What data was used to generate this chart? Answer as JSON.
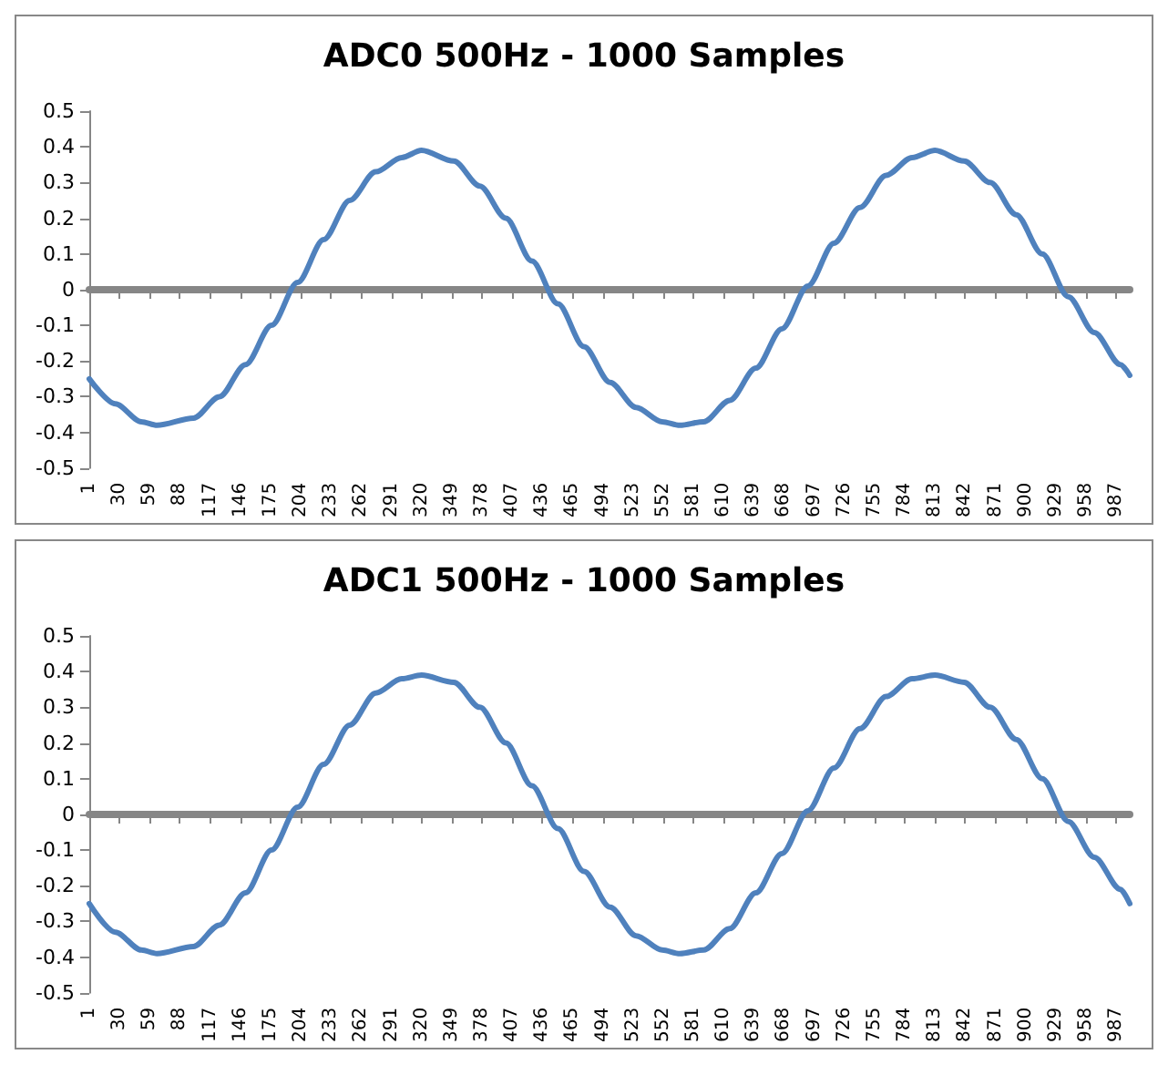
{
  "chart_data": [
    {
      "type": "line",
      "title": "ADC0 500Hz - 1000 Samples",
      "xlim": [
        1,
        1000
      ],
      "xticks": [
        1,
        30,
        59,
        88,
        117,
        146,
        175,
        204,
        233,
        262,
        291,
        320,
        349,
        378,
        407,
        436,
        465,
        494,
        523,
        552,
        581,
        610,
        639,
        668,
        697,
        726,
        755,
        784,
        813,
        842,
        871,
        900,
        929,
        958,
        987
      ],
      "ylim": [
        -0.5,
        0.5
      ],
      "yticks": [
        -0.5,
        -0.4,
        -0.3,
        -0.2,
        -0.1,
        0,
        0.1,
        0.2,
        0.3,
        0.4,
        0.5
      ],
      "marker": "none",
      "line_style": "solid",
      "series": [
        {
          "color": "#4f81bd",
          "x": [
            1,
            26,
            51,
            66,
            101,
            126,
            151,
            176,
            201,
            226,
            251,
            276,
            301,
            320,
            351,
            376,
            401,
            426,
            451,
            476,
            501,
            526,
            551,
            568,
            591,
            616,
            641,
            666,
            691,
            716,
            741,
            766,
            791,
            813,
            841,
            866,
            891,
            916,
            941,
            966,
            991,
            1000
          ],
          "values": [
            -0.25,
            -0.32,
            -0.37,
            -0.38,
            -0.36,
            -0.3,
            -0.21,
            -0.1,
            0.02,
            0.14,
            0.25,
            0.33,
            0.37,
            0.39,
            0.36,
            0.29,
            0.2,
            0.08,
            -0.04,
            -0.16,
            -0.26,
            -0.33,
            -0.37,
            -0.38,
            -0.37,
            -0.31,
            -0.22,
            -0.11,
            0.01,
            0.13,
            0.23,
            0.32,
            0.37,
            0.39,
            0.36,
            0.3,
            0.21,
            0.1,
            -0.02,
            -0.12,
            -0.21,
            -0.24
          ]
        }
      ]
    },
    {
      "type": "line",
      "title": "ADC1 500Hz - 1000 Samples",
      "xlim": [
        1,
        1000
      ],
      "xticks": [
        1,
        30,
        59,
        88,
        117,
        146,
        175,
        204,
        233,
        262,
        291,
        320,
        349,
        378,
        407,
        436,
        465,
        494,
        523,
        552,
        581,
        610,
        639,
        668,
        697,
        726,
        755,
        784,
        813,
        842,
        871,
        900,
        929,
        958,
        987
      ],
      "ylim": [
        -0.5,
        0.5
      ],
      "yticks": [
        -0.5,
        -0.4,
        -0.3,
        -0.2,
        -0.1,
        0,
        0.1,
        0.2,
        0.3,
        0.4,
        0.5
      ],
      "marker": "none",
      "line_style": "solid",
      "series": [
        {
          "color": "#4f81bd",
          "x": [
            1,
            26,
            51,
            66,
            101,
            126,
            151,
            176,
            201,
            226,
            251,
            276,
            301,
            320,
            351,
            376,
            401,
            426,
            451,
            476,
            501,
            526,
            551,
            568,
            591,
            616,
            641,
            666,
            691,
            716,
            741,
            766,
            791,
            813,
            841,
            866,
            891,
            916,
            941,
            966,
            991,
            1000
          ],
          "values": [
            -0.25,
            -0.33,
            -0.38,
            -0.39,
            -0.37,
            -0.31,
            -0.22,
            -0.1,
            0.02,
            0.14,
            0.25,
            0.34,
            0.38,
            0.39,
            0.37,
            0.3,
            0.2,
            0.08,
            -0.04,
            -0.16,
            -0.26,
            -0.34,
            -0.38,
            -0.39,
            -0.38,
            -0.32,
            -0.22,
            -0.11,
            0.01,
            0.13,
            0.24,
            0.33,
            0.38,
            0.39,
            0.37,
            0.3,
            0.21,
            0.1,
            -0.02,
            -0.12,
            -0.21,
            -0.25
          ]
        }
      ]
    }
  ]
}
